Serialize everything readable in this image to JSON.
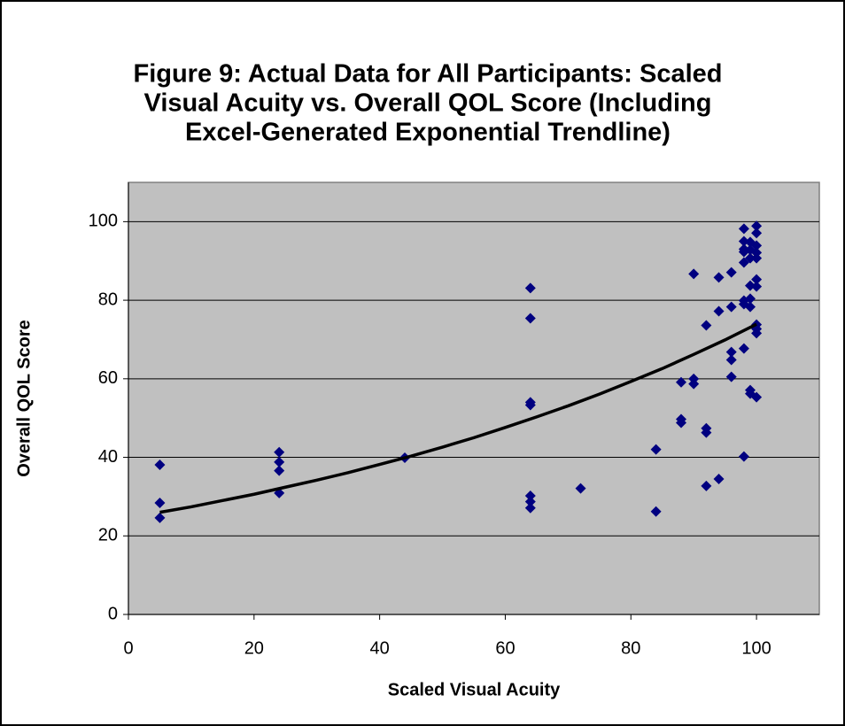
{
  "chart_data": {
    "type": "scatter",
    "title": [
      "Figure 9: Actual Data for All Participants: Scaled",
      "Visual Acuity vs. Overall QOL Score (Including",
      "Excel-Generated Exponential Trendline)"
    ],
    "x_label": "Scaled Visual Acuity",
    "y_label": "Overall QOL Score",
    "xlim": [
      0,
      110
    ],
    "ylim": [
      0,
      110
    ],
    "xticks": [
      0,
      20,
      40,
      60,
      80,
      100
    ],
    "yticks": [
      0,
      20,
      40,
      60,
      80,
      100
    ],
    "grid": true,
    "background": "#c0c0c0",
    "series": [
      {
        "color": "#000080",
        "x": [
          5,
          5,
          5,
          24,
          24,
          24,
          24,
          44,
          64,
          64,
          64,
          64,
          64,
          64,
          64,
          72,
          84,
          84,
          88,
          88,
          88,
          90,
          90,
          90,
          92,
          92,
          92,
          92,
          94,
          94,
          94,
          96,
          96,
          96,
          96,
          96,
          98,
          98,
          98,
          98,
          98,
          98,
          98,
          98,
          98,
          99,
          99,
          99,
          99,
          99,
          99,
          99,
          99,
          100,
          100,
          100,
          100,
          100,
          100,
          100,
          100,
          100,
          100,
          100
        ],
        "values": [
          38.1,
          28.4,
          24.6,
          41.3,
          38.8,
          36.6,
          30.9,
          39.9,
          83.1,
          75.4,
          54.0,
          53.3,
          30.2,
          28.7,
          27.1,
          32.1,
          42.0,
          26.2,
          59.1,
          49.7,
          48.8,
          86.7,
          60.0,
          58.7,
          73.6,
          47.4,
          46.3,
          32.7,
          85.8,
          77.2,
          34.5,
          87.1,
          78.3,
          66.8,
          64.8,
          60.5,
          98.2,
          95.0,
          93.0,
          92.3,
          89.6,
          79.9,
          79.0,
          67.7,
          40.2,
          94.8,
          92.8,
          90.7,
          83.7,
          80.4,
          78.3,
          57.1,
          56.2,
          98.9,
          97.1,
          93.9,
          92.1,
          90.7,
          85.3,
          83.5,
          73.8,
          72.7,
          71.6,
          55.3
        ]
      },
      {
        "color": "#000000",
        "line": true,
        "x": [
          5,
          10,
          15,
          20,
          25,
          30,
          35,
          40,
          45,
          50,
          55,
          60,
          65,
          70,
          75,
          80,
          85,
          90,
          95,
          100
        ],
        "values": [
          26.0,
          27.4,
          29.0,
          30.6,
          32.4,
          34.2,
          36.1,
          38.2,
          40.3,
          42.6,
          45.0,
          47.6,
          50.3,
          53.1,
          56.1,
          59.3,
          62.6,
          66.2,
          69.9,
          73.9
        ]
      }
    ]
  }
}
